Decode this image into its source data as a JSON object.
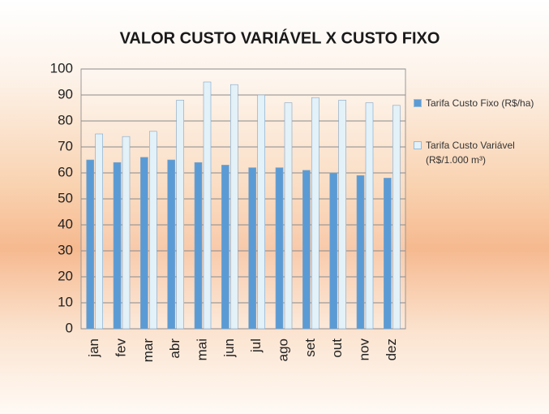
{
  "chart_data": {
    "type": "bar",
    "title": "VALOR CUSTO VARIÁVEL X CUSTO FIXO",
    "categories": [
      "jan",
      "fev",
      "mar",
      "abr",
      "mai",
      "jun",
      "jul",
      "ago",
      "set",
      "out",
      "nov",
      "dez"
    ],
    "series": [
      {
        "name": "Tarifa Custo Fixo (R$/ha)",
        "color": "#5b9bd5",
        "values": [
          65,
          64,
          66,
          65,
          64,
          63,
          62,
          62,
          61,
          60,
          59,
          58
        ]
      },
      {
        "name": "Tarifa Custo Variável (R$/1.000 m³)",
        "color": "#e3f1f8",
        "values": [
          75,
          74,
          76,
          88,
          95,
          94,
          90,
          87,
          89,
          88,
          87,
          86
        ]
      }
    ],
    "ylim": [
      0,
      100
    ],
    "yticks": [
      0,
      10,
      20,
      30,
      40,
      50,
      60,
      70,
      80,
      90,
      100
    ],
    "grid": true,
    "legend": "right"
  }
}
